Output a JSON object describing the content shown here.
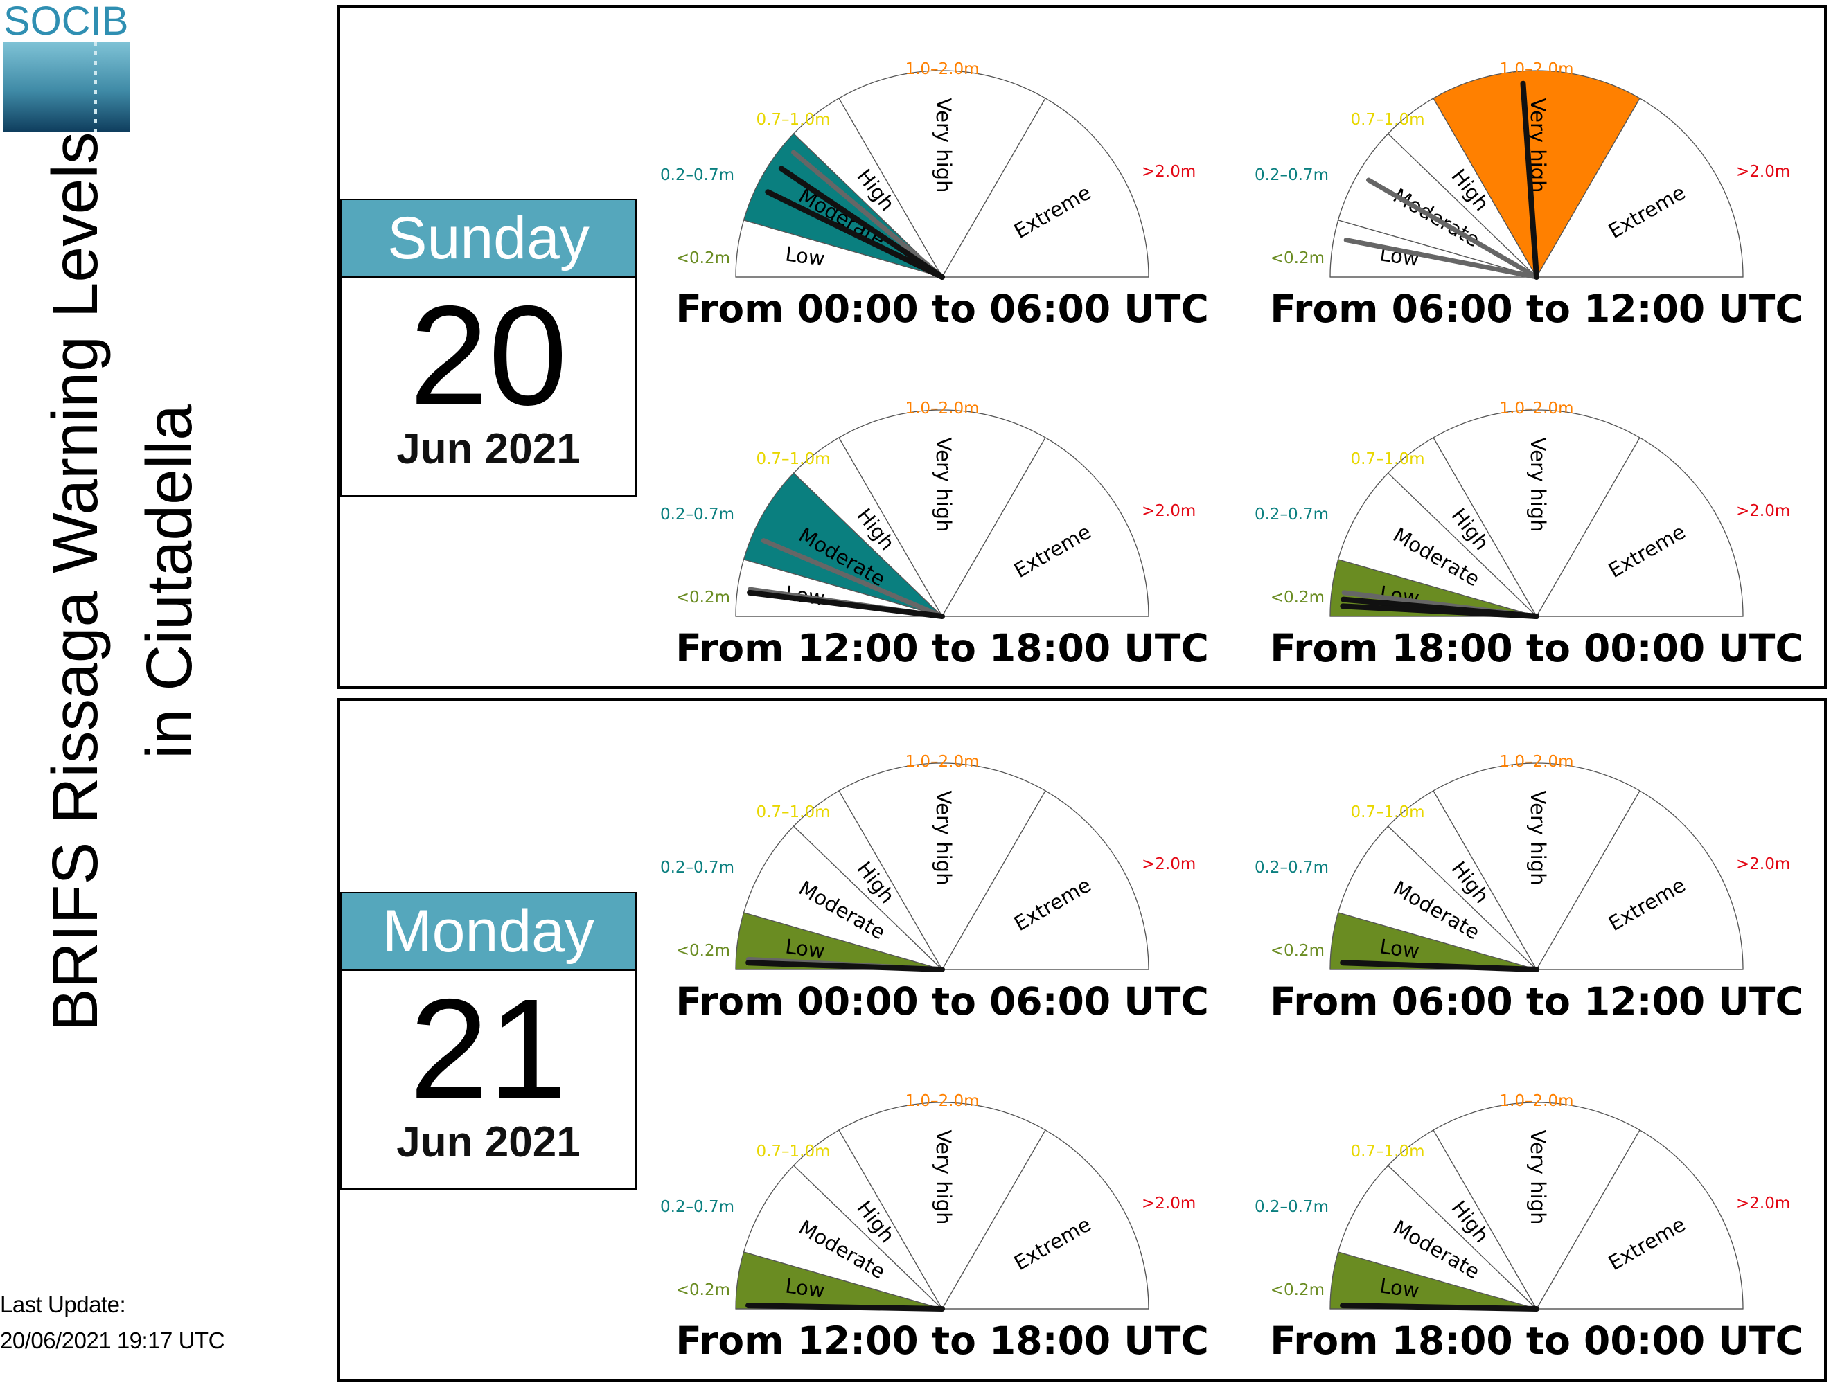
{
  "logo": {
    "text": "SOCIB",
    "color": "#2f8fb2"
  },
  "title": {
    "line1": "BRIFS Rissaga Warning Levels",
    "line2": "in Ciutadella"
  },
  "last_update": {
    "label": "Last Update:",
    "value": "20/06/2021 19:17 UTC"
  },
  "days": [
    {
      "weekday": "Sunday",
      "day": "20",
      "month_year": "Jun 2021"
    },
    {
      "weekday": "Monday",
      "day": "21",
      "month_year": "Jun 2021"
    }
  ],
  "chart_data": {
    "type": "gauge",
    "levels": [
      {
        "name": "Low",
        "threshold": "<0.2m",
        "color": "#6a8c22",
        "label_color": "#6a8c22"
      },
      {
        "name": "Moderate",
        "threshold": "0.2–0.7m",
        "color": "#0a7f7f",
        "label_color": "#0a7f7f"
      },
      {
        "name": "High",
        "threshold": "0.7–1.0m",
        "color": "#ffe600",
        "label_color": "#e8d700"
      },
      {
        "name": "Very high",
        "threshold": "1.0–2.0m",
        "color": "#ff8000",
        "label_color": "#ff8000"
      },
      {
        "name": "Extreme",
        "threshold": ">2.0m",
        "color": "#e30613",
        "label_color": "#e30613"
      }
    ],
    "panels": [
      {
        "day": 0,
        "period": "From 00:00 to 06:00 UTC",
        "active_level": "Moderate",
        "needles_deg": [
          26,
          34
        ],
        "gray_needles_deg": [
          40
        ]
      },
      {
        "day": 0,
        "period": "From 06:00 to 12:00 UTC",
        "active_level": "Very high",
        "needles_deg": [
          86
        ],
        "gray_needles_deg": [
          30,
          11
        ]
      },
      {
        "day": 0,
        "period": "From 12:00 to 18:00 UTC",
        "active_level": "Moderate",
        "needles_deg": [
          7
        ],
        "gray_needles_deg": [
          23,
          8
        ]
      },
      {
        "day": 0,
        "period": "From 18:00 to 00:00 UTC",
        "active_level": "Low",
        "needles_deg": [
          5,
          3
        ],
        "gray_needles_deg": [
          7
        ]
      },
      {
        "day": 1,
        "period": "From 00:00 to 06:00 UTC",
        "active_level": "Low",
        "needles_deg": [
          2
        ],
        "gray_needles_deg": [
          3
        ]
      },
      {
        "day": 1,
        "period": "From 06:00 to 12:00 UTC",
        "active_level": "Low",
        "needles_deg": [
          2
        ],
        "gray_needles_deg": []
      },
      {
        "day": 1,
        "period": "From 12:00 to 18:00 UTC",
        "active_level": "Low",
        "needles_deg": [
          1
        ],
        "gray_needles_deg": []
      },
      {
        "day": 1,
        "period": "From 18:00 to 00:00 UTC",
        "active_level": "Low",
        "needles_deg": [
          1
        ],
        "gray_needles_deg": []
      }
    ]
  }
}
